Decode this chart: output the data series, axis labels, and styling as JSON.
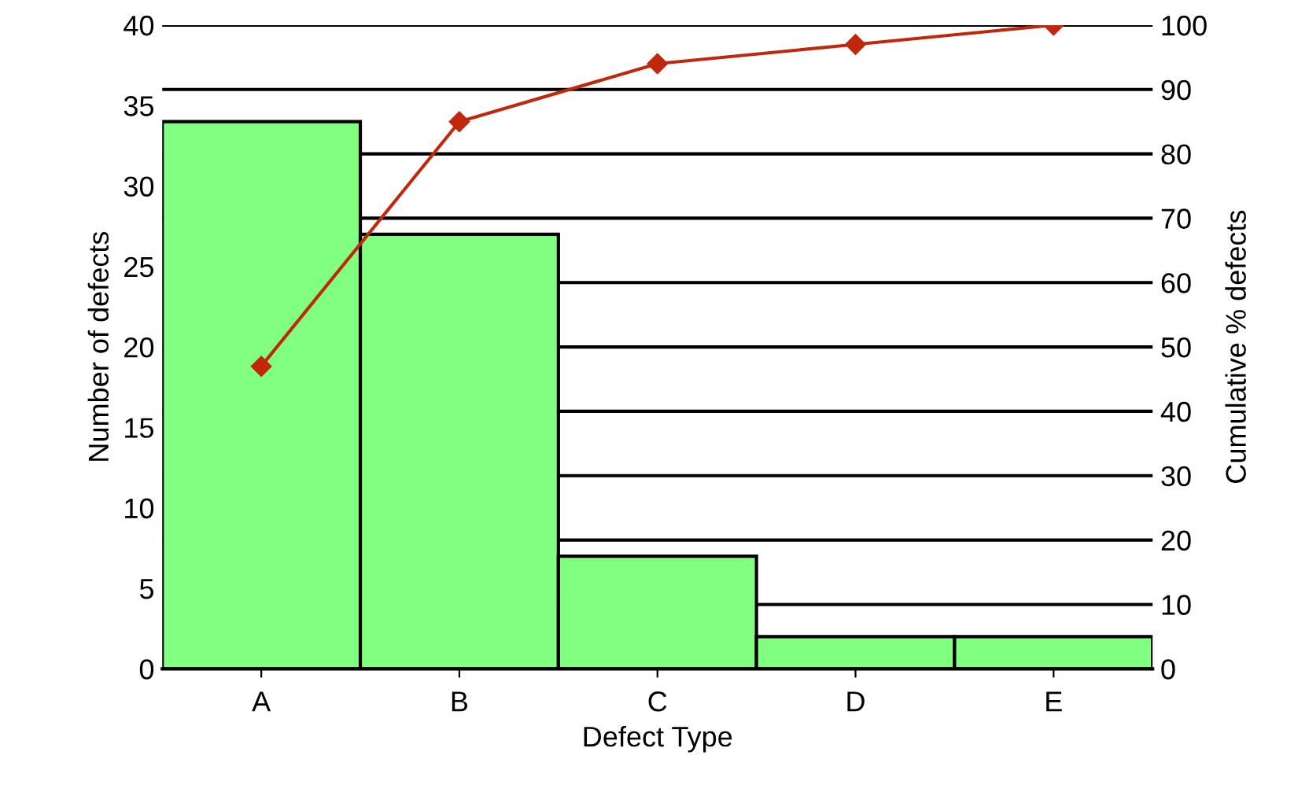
{
  "chart_data": {
    "type": "bar",
    "xlabel": "Defect Type",
    "ylabel": "Number of defects",
    "y2label": "Cumulative % defects",
    "categories": [
      "A",
      "B",
      "C",
      "D",
      "E"
    ],
    "series": [
      {
        "color": "#80ff80",
        "values": [
          34,
          27,
          7,
          2,
          2
        ]
      },
      {
        "type": "line",
        "axis": "y2",
        "color": "#c0280c",
        "marker": "diamond",
        "values": [
          47,
          85,
          94,
          97,
          100
        ]
      }
    ],
    "ylim": [
      0,
      40
    ],
    "yticks": [
      0,
      5,
      10,
      15,
      20,
      25,
      30,
      35,
      40
    ],
    "y2lim": [
      0,
      100
    ],
    "y2ticks": [
      0,
      10,
      20,
      30,
      40,
      50,
      60,
      70,
      80,
      90,
      100
    ],
    "grid": "y"
  }
}
